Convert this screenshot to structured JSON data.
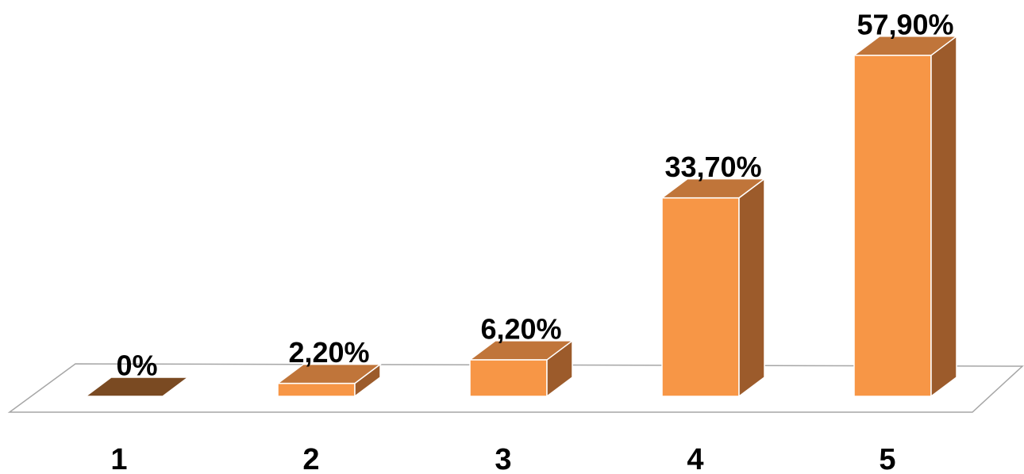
{
  "chart_data": {
    "type": "bar3d",
    "categories": [
      "1",
      "2",
      "3",
      "4",
      "5"
    ],
    "values": [
      0,
      2.2,
      6.2,
      33.7,
      57.9
    ],
    "value_labels": [
      "0%",
      "2,20%",
      "6,20%",
      "33,70%",
      "57,90%"
    ],
    "color": "#f79646",
    "side_color": "#9c5b2b",
    "top_color": "#c0753a"
  }
}
